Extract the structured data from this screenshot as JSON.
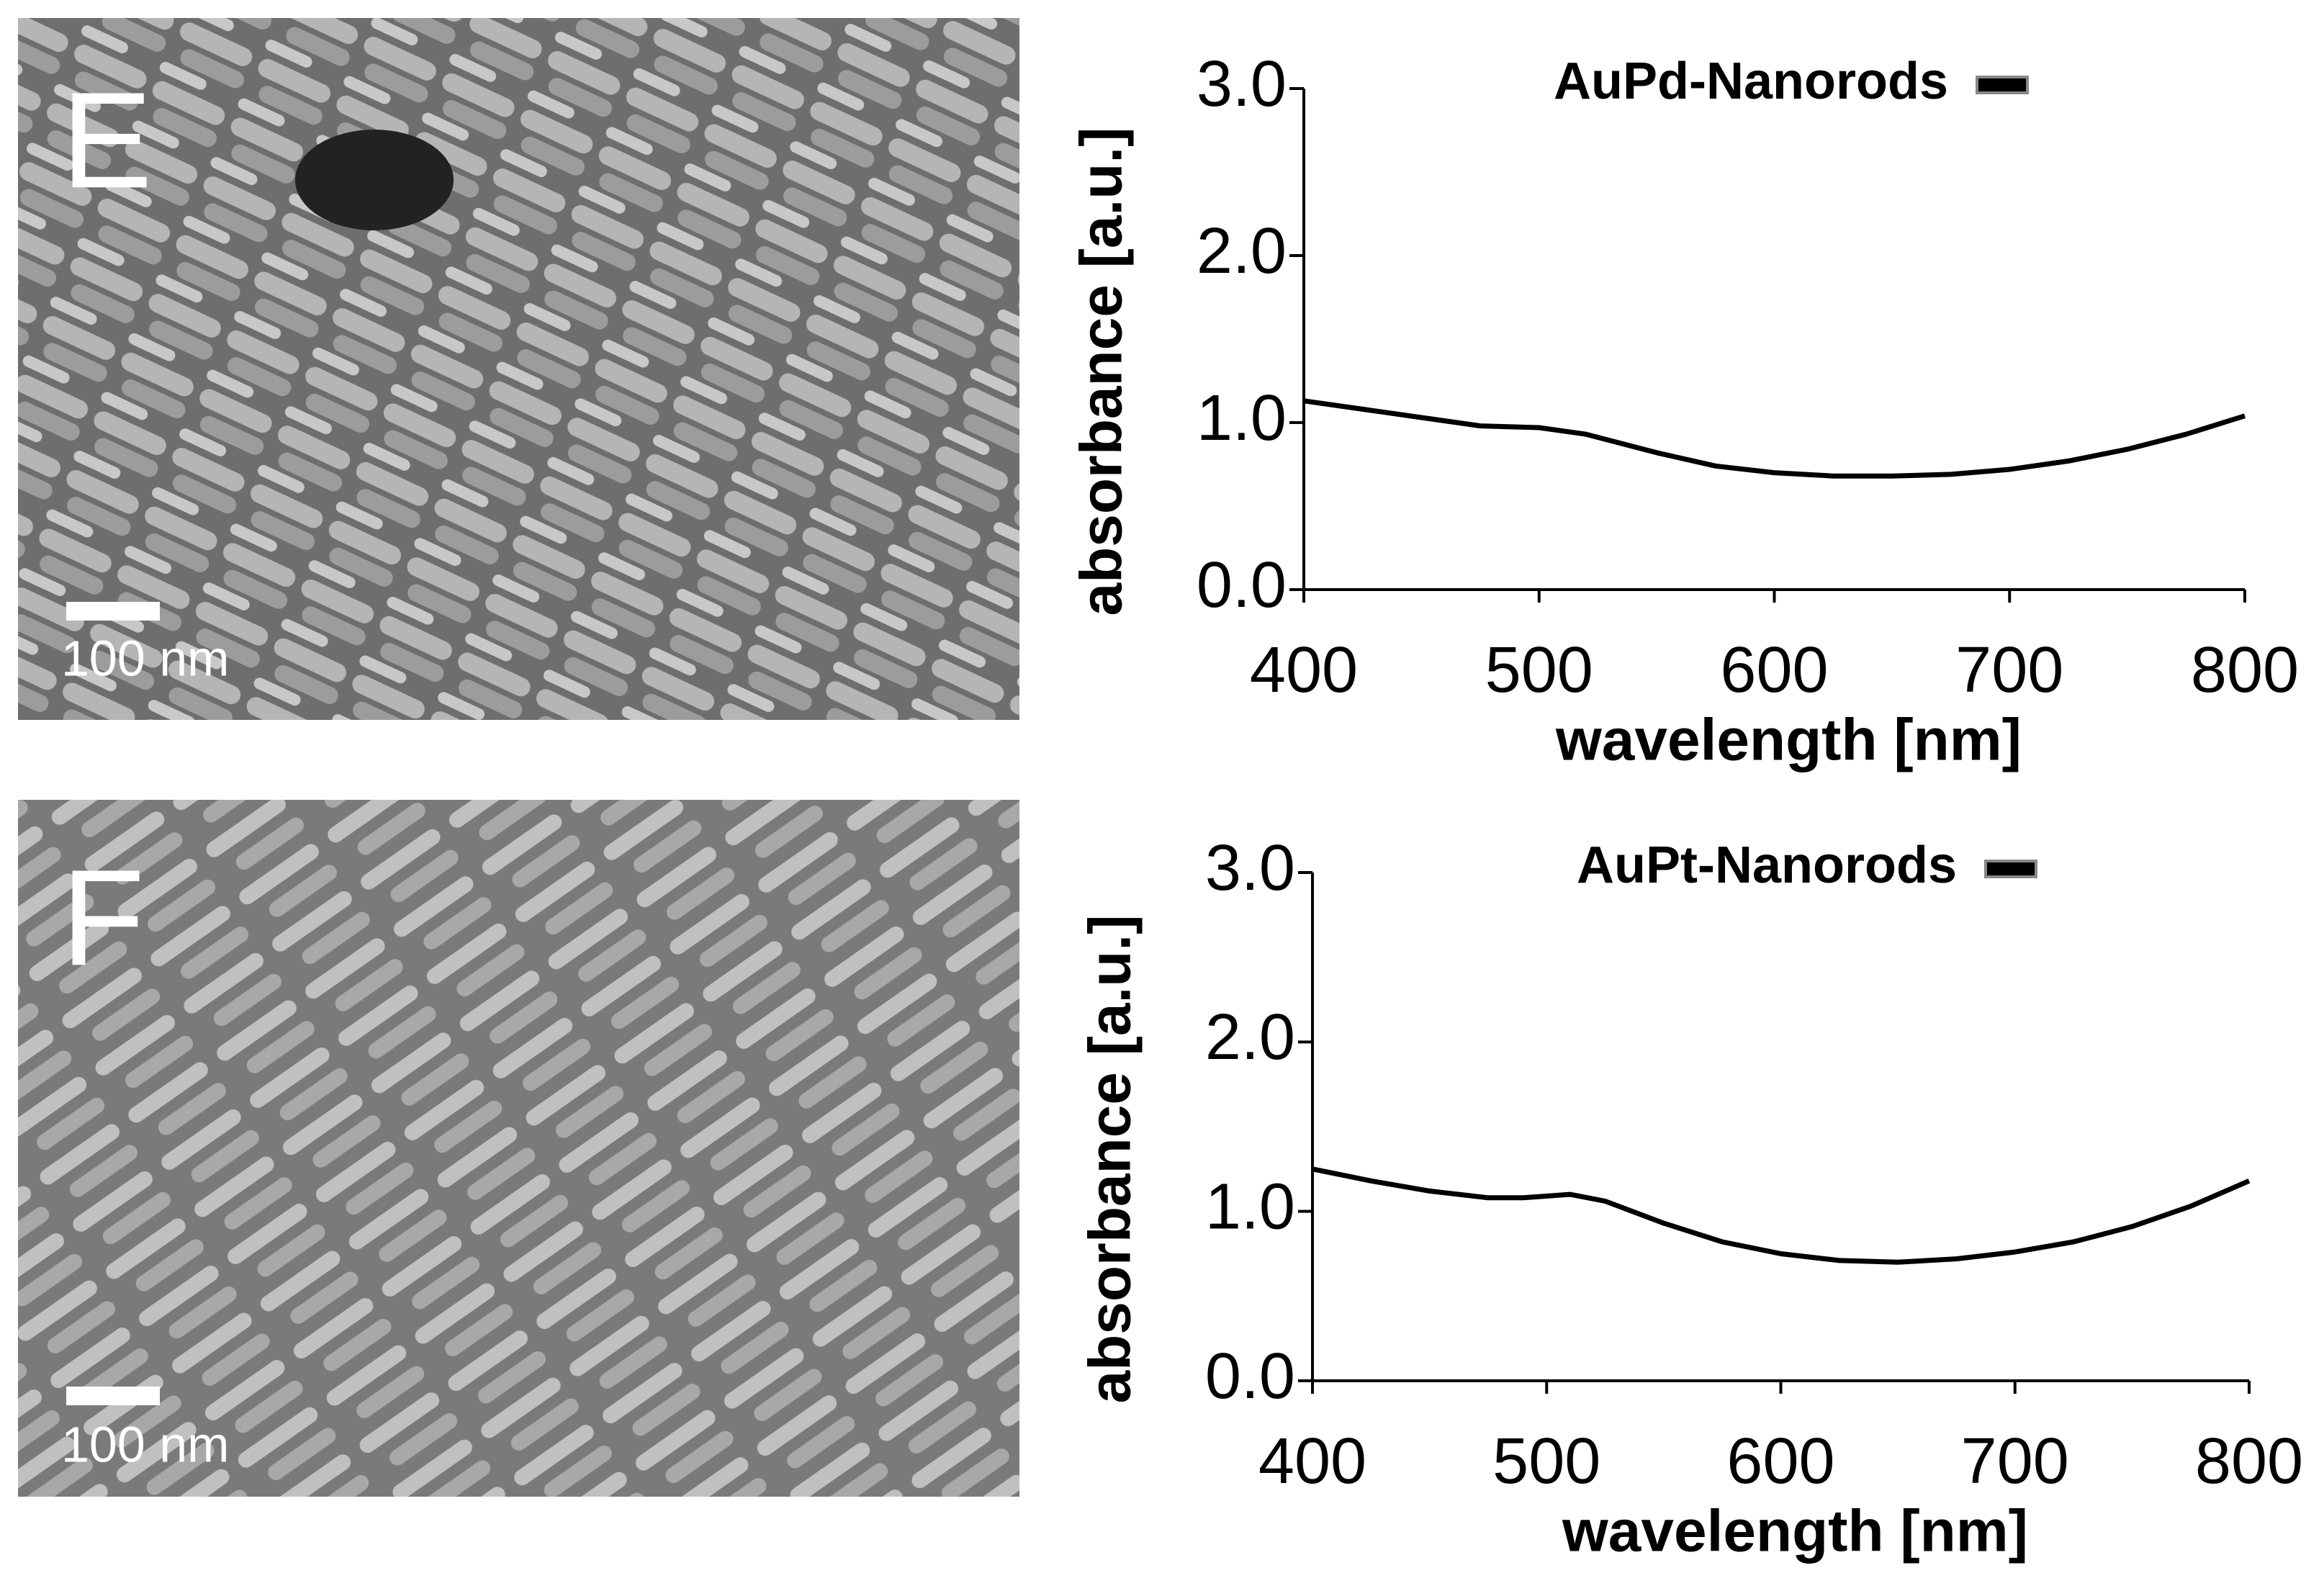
{
  "images": [
    {
      "label": "E",
      "scale_bar": "100 nm"
    },
    {
      "label": "F",
      "scale_bar": "100 nm"
    }
  ],
  "chart_data": [
    {
      "type": "line",
      "xlabel": "wavelength [nm]",
      "ylabel": "absorbance [a.u.]",
      "x": [
        400,
        425,
        450,
        475,
        500,
        520,
        550,
        575,
        600,
        625,
        650,
        675,
        700,
        725,
        750,
        775,
        800
      ],
      "series": [
        {
          "name": "AuPd-Nanorods",
          "color": "#000000",
          "values": [
            1.13,
            1.08,
            1.03,
            0.98,
            0.97,
            0.93,
            0.82,
            0.74,
            0.7,
            0.68,
            0.68,
            0.69,
            0.72,
            0.77,
            0.84,
            0.93,
            1.04
          ]
        }
      ],
      "xlim": [
        400,
        800
      ],
      "ylim": [
        0,
        3
      ],
      "xticks": [
        400,
        500,
        600,
        700,
        800
      ],
      "yticks": [
        {
          "value": 0,
          "label": "0.0"
        },
        {
          "value": 1,
          "label": "1.0"
        },
        {
          "value": 2,
          "label": "2.0"
        },
        {
          "value": 3,
          "label": "3.0"
        }
      ],
      "legend": "top"
    },
    {
      "type": "line",
      "xlabel": "wavelength [nm]",
      "ylabel": "absorbance [a.u.]",
      "x": [
        400,
        425,
        450,
        475,
        490,
        510,
        525,
        550,
        575,
        600,
        625,
        650,
        675,
        700,
        725,
        750,
        775,
        800
      ],
      "series": [
        {
          "name": "AuPt-Nanorods",
          "color": "#000000",
          "values": [
            1.25,
            1.18,
            1.12,
            1.08,
            1.08,
            1.1,
            1.06,
            0.93,
            0.82,
            0.75,
            0.71,
            0.7,
            0.72,
            0.76,
            0.82,
            0.91,
            1.03,
            1.18
          ]
        }
      ],
      "xlim": [
        400,
        800
      ],
      "ylim": [
        0,
        3
      ],
      "xticks": [
        400,
        500,
        600,
        700,
        800
      ],
      "yticks": [
        {
          "value": 0,
          "label": "0.0"
        },
        {
          "value": 1,
          "label": "1.0"
        },
        {
          "value": 2,
          "label": "2.0"
        },
        {
          "value": 3,
          "label": "3.0"
        }
      ],
      "legend": "top"
    }
  ]
}
